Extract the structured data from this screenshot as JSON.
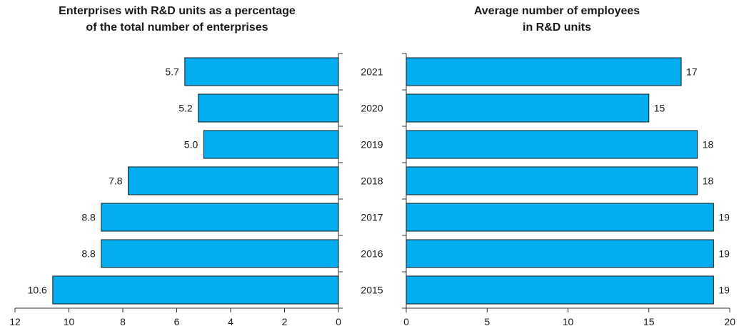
{
  "chart_data": [
    {
      "type": "bar",
      "orientation": "horizontal",
      "direction": "right-to-left",
      "title_lines": [
        "Enterprises with R&D units as a percentage",
        "of the total number of enterprises"
      ],
      "categories": [
        "2021",
        "2020",
        "2019",
        "2018",
        "2017",
        "2016",
        "2015"
      ],
      "values": [
        5.7,
        5.2,
        5.0,
        7.8,
        8.8,
        8.8,
        10.6
      ],
      "value_labels": [
        "5.7",
        "5.2",
        "5.0",
        "7.8",
        "8.8",
        "8.8",
        "10.6"
      ],
      "xlim": [
        0,
        12
      ],
      "xticks": [
        "0",
        "2",
        "4",
        "6",
        "8",
        "10",
        "12"
      ],
      "xtick_values": [
        0,
        2,
        4,
        6,
        8,
        10,
        12
      ],
      "grid": false,
      "bar_color": "#00AEEF"
    },
    {
      "type": "bar",
      "orientation": "horizontal",
      "direction": "left-to-right",
      "title_lines": [
        "Average number of employees",
        "in R&D units"
      ],
      "categories": [
        "2021",
        "2020",
        "2019",
        "2018",
        "2017",
        "2016",
        "2015"
      ],
      "values": [
        17,
        15,
        18,
        18,
        19,
        19,
        19
      ],
      "value_labels": [
        "17",
        "15",
        "18",
        "18",
        "19",
        "19",
        "19"
      ],
      "xlim": [
        0,
        20
      ],
      "xticks": [
        "0",
        "5",
        "10",
        "15",
        "20"
      ],
      "xtick_values": [
        0,
        5,
        10,
        15,
        20
      ],
      "grid": false,
      "bar_color": "#00AEEF"
    }
  ],
  "category_labels": [
    "2021",
    "2020",
    "2019",
    "2018",
    "2017",
    "2016",
    "2015"
  ]
}
